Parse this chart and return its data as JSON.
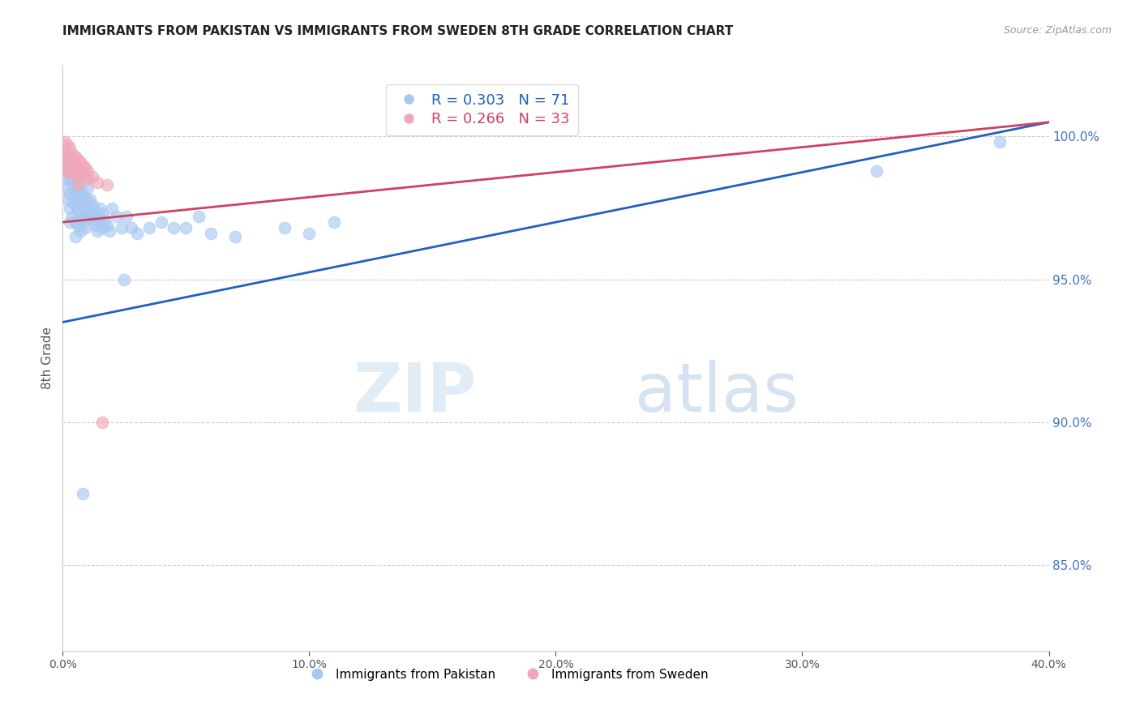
{
  "title": "IMMIGRANTS FROM PAKISTAN VS IMMIGRANTS FROM SWEDEN 8TH GRADE CORRELATION CHART",
  "source": "Source: ZipAtlas.com",
  "ylabel": "8th Grade",
  "xlim": [
    0.0,
    0.4
  ],
  "ylim": [
    0.82,
    1.025
  ],
  "yticks": [
    0.85,
    0.9,
    0.95,
    1.0
  ],
  "xticks": [
    0.0,
    0.1,
    0.2,
    0.3,
    0.4
  ],
  "blue_R": 0.303,
  "blue_N": 71,
  "pink_R": 0.266,
  "pink_N": 33,
  "blue_color": "#A8C8F0",
  "pink_color": "#F0A8B8",
  "blue_line_color": "#2060C0",
  "pink_line_color": "#D04060",
  "legend_label_blue": "Immigrants from Pakistan",
  "legend_label_pink": "Immigrants from Sweden",
  "watermark_zip": "ZIP",
  "watermark_atlas": "atlas",
  "blue_x": [
    0.001,
    0.001,
    0.002,
    0.002,
    0.002,
    0.003,
    0.003,
    0.003,
    0.003,
    0.003,
    0.004,
    0.004,
    0.004,
    0.004,
    0.005,
    0.005,
    0.005,
    0.005,
    0.005,
    0.006,
    0.006,
    0.006,
    0.006,
    0.007,
    0.007,
    0.007,
    0.007,
    0.008,
    0.008,
    0.008,
    0.009,
    0.009,
    0.009,
    0.01,
    0.01,
    0.01,
    0.011,
    0.011,
    0.012,
    0.012,
    0.013,
    0.013,
    0.014,
    0.014,
    0.015,
    0.015,
    0.016,
    0.016,
    0.017,
    0.018,
    0.019,
    0.02,
    0.022,
    0.024,
    0.026,
    0.028,
    0.03,
    0.035,
    0.04,
    0.05,
    0.06,
    0.07,
    0.09,
    0.1,
    0.11,
    0.025,
    0.045,
    0.055,
    0.008,
    0.38,
    0.33
  ],
  "blue_y": [
    0.99,
    0.985,
    0.988,
    0.982,
    0.978,
    0.99,
    0.985,
    0.98,
    0.975,
    0.97,
    0.988,
    0.983,
    0.977,
    0.972,
    0.986,
    0.981,
    0.976,
    0.97,
    0.965,
    0.984,
    0.979,
    0.974,
    0.969,
    0.982,
    0.977,
    0.972,
    0.967,
    0.98,
    0.975,
    0.97,
    0.978,
    0.973,
    0.968,
    0.982,
    0.977,
    0.972,
    0.978,
    0.973,
    0.976,
    0.971,
    0.974,
    0.969,
    0.972,
    0.967,
    0.975,
    0.97,
    0.973,
    0.968,
    0.971,
    0.969,
    0.967,
    0.975,
    0.972,
    0.968,
    0.972,
    0.968,
    0.966,
    0.968,
    0.97,
    0.968,
    0.966,
    0.965,
    0.968,
    0.966,
    0.97,
    0.95,
    0.968,
    0.972,
    0.875,
    0.998,
    0.988
  ],
  "pink_x": [
    0.001,
    0.001,
    0.001,
    0.002,
    0.002,
    0.002,
    0.002,
    0.003,
    0.003,
    0.003,
    0.003,
    0.004,
    0.004,
    0.004,
    0.005,
    0.005,
    0.005,
    0.006,
    0.006,
    0.006,
    0.006,
    0.007,
    0.007,
    0.008,
    0.008,
    0.009,
    0.009,
    0.01,
    0.01,
    0.012,
    0.014,
    0.016,
    0.018
  ],
  "pink_y": [
    0.998,
    0.995,
    0.992,
    0.997,
    0.994,
    0.991,
    0.988,
    0.996,
    0.993,
    0.99,
    0.987,
    0.994,
    0.991,
    0.988,
    0.993,
    0.99,
    0.987,
    0.992,
    0.989,
    0.986,
    0.983,
    0.991,
    0.988,
    0.99,
    0.987,
    0.989,
    0.986,
    0.988,
    0.985,
    0.986,
    0.984,
    0.9,
    0.983
  ],
  "blue_trend_x": [
    0.0,
    0.4
  ],
  "blue_trend_y": [
    0.935,
    1.005
  ],
  "pink_trend_x": [
    0.0,
    0.4
  ],
  "pink_trend_y": [
    0.97,
    1.005
  ]
}
